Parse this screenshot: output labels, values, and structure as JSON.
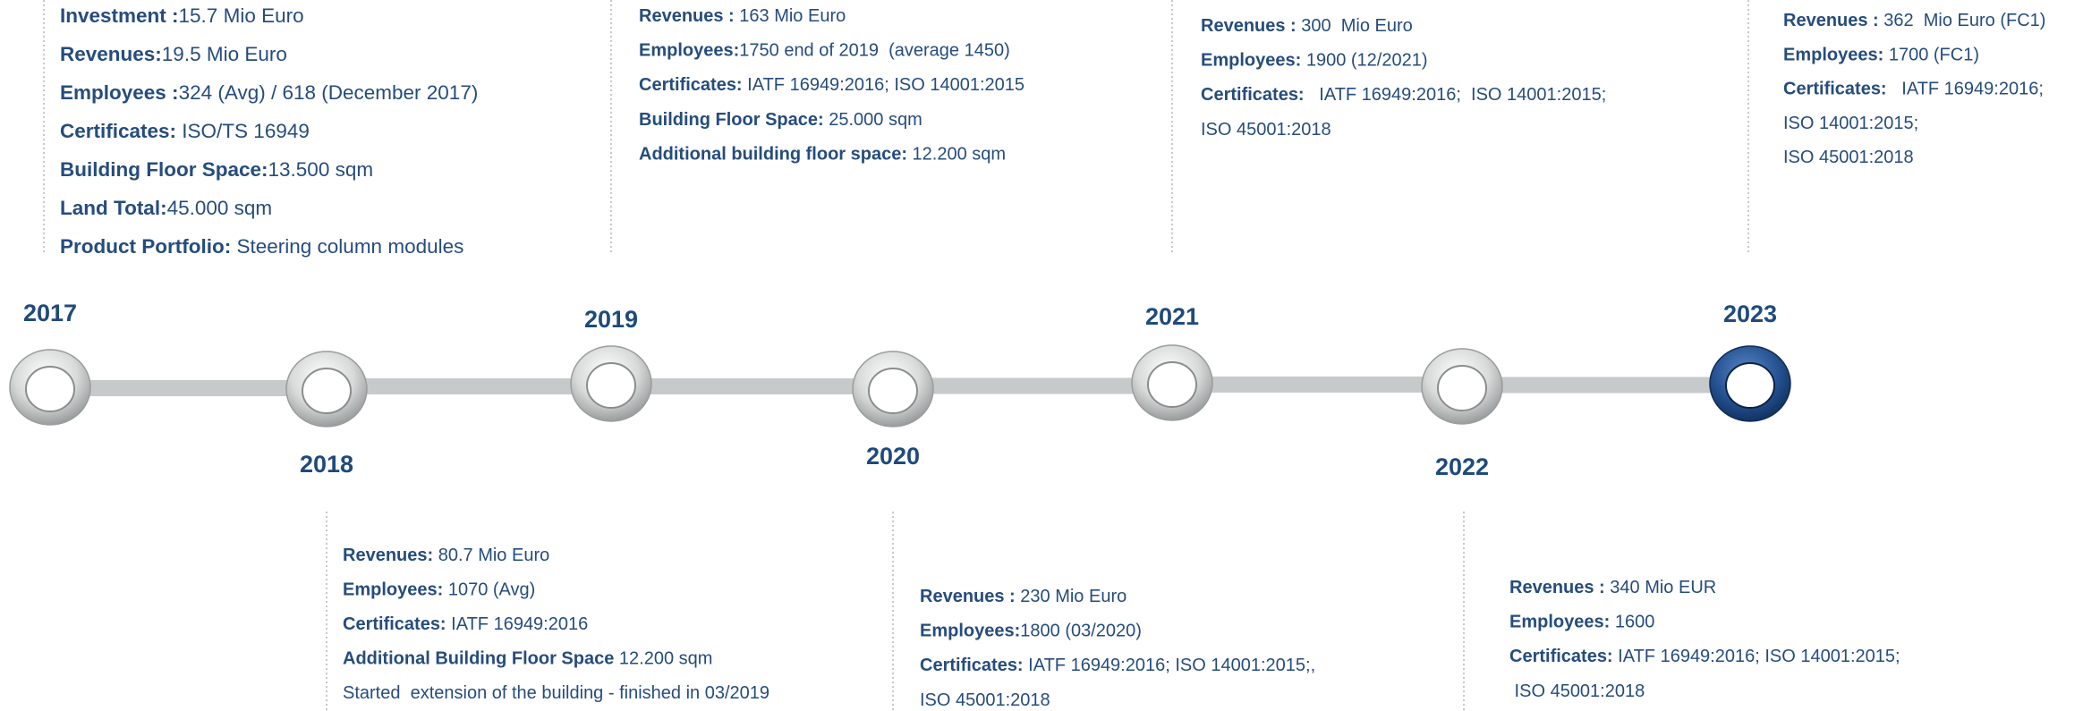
{
  "timeline": [
    {
      "year": "2017",
      "lines": [
        {
          "label": "Investment :",
          "text": "15.7 Mio Euro"
        },
        {
          "label": "Revenues:",
          "text": "19.5 Mio Euro"
        },
        {
          "label": "Employees :",
          "text": "324 (Avg) / 618 (December 2017)"
        },
        {
          "label": "Certificates:",
          "text": " ISO/TS 16949"
        },
        {
          "label": "Building Floor Space:",
          "text": "13.500 sqm"
        },
        {
          "label": "Land Total:",
          "text": "45.000 sqm"
        },
        {
          "label": "Product Portfolio:",
          "text": " Steering column modules"
        }
      ]
    },
    {
      "year": "2018",
      "lines": [
        {
          "label": "Revenues:",
          "text": " 80.7 Mio Euro"
        },
        {
          "label": "Employees:",
          "text": " 1070 (Avg)"
        },
        {
          "label": "Certificates:",
          "text": " IATF 16949:2016"
        },
        {
          "label": "Additional Building Floor Space",
          "text": " 12.200 sqm"
        },
        {
          "text": "Started  extension of the building - finished in 03/2019"
        }
      ]
    },
    {
      "year": "2019",
      "lines": [
        {
          "label": "Revenues :",
          "text": " 163 Mio Euro"
        },
        {
          "label": "Employees:",
          "text": "1750 end of 2019  (average 1450)"
        },
        {
          "label": "Certificates:",
          "text": " IATF 16949:2016; ISO 14001:2015"
        },
        {
          "label": "Building Floor Space:",
          "text": " 25.000 sqm"
        },
        {
          "label": "Additional building floor space:",
          "text": " 12.200 sqm"
        }
      ]
    },
    {
      "year": "2020",
      "lines": [
        {
          "label": "Revenues :",
          "text": " 230 Mio Euro"
        },
        {
          "label": "Employees:",
          "text": "1800 (03/2020)"
        },
        {
          "label": "Certificates:",
          "text": " IATF 16949:2016; ISO 14001:2015;,"
        },
        {
          "text": "ISO 45001:2018"
        }
      ]
    },
    {
      "year": "2021",
      "lines": [
        {
          "label": "Revenues :",
          "text": " 300  Mio Euro"
        },
        {
          "label": "Employees:",
          "text": " 1900 (12/2021)"
        },
        {
          "label": "Certificates:",
          "text": "   IATF 16949:2016;  ISO 14001:2015;"
        },
        {
          "text": "ISO 45001:2018"
        }
      ]
    },
    {
      "year": "2022",
      "lines": [
        {
          "label": "Revenues :",
          "text": " 340 Mio EUR"
        },
        {
          "label": "Employees:",
          "text": " 1600"
        },
        {
          "label": "Certificates:",
          "text": " IATF 16949:2016; ISO 14001:2015;"
        },
        {
          "text": " ISO 45001:2018"
        }
      ]
    },
    {
      "year": "2023",
      "lines": [
        {
          "label": "Revenues :",
          "text": " 362  Mio Euro (FC1)"
        },
        {
          "label": "Employees:",
          "text": " 1700 (FC1)"
        },
        {
          "label": "Certificates:",
          "text": "   IATF 16949:2016;"
        },
        {
          "text": "ISO 14001:2015;"
        },
        {
          "text": "ISO 45001:2018"
        }
      ]
    }
  ]
}
